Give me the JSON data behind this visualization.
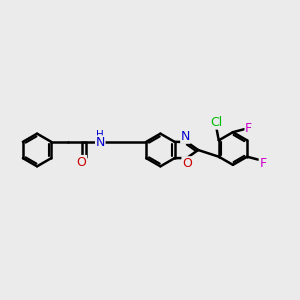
{
  "bg_color": "#ebebeb",
  "bond_color": "#000000",
  "bond_width": 1.8,
  "atom_colors": {
    "N_amide": "#0000cc",
    "N_oxazole": "#0000cc",
    "O_carbonyl": "#cc0000",
    "O_oxazole": "#cc0000",
    "Cl": "#00bb00",
    "F1": "#cc00cc",
    "F2": "#cc00cc"
  },
  "xlim": [
    0,
    10
  ],
  "ylim": [
    2.5,
    7.5
  ]
}
